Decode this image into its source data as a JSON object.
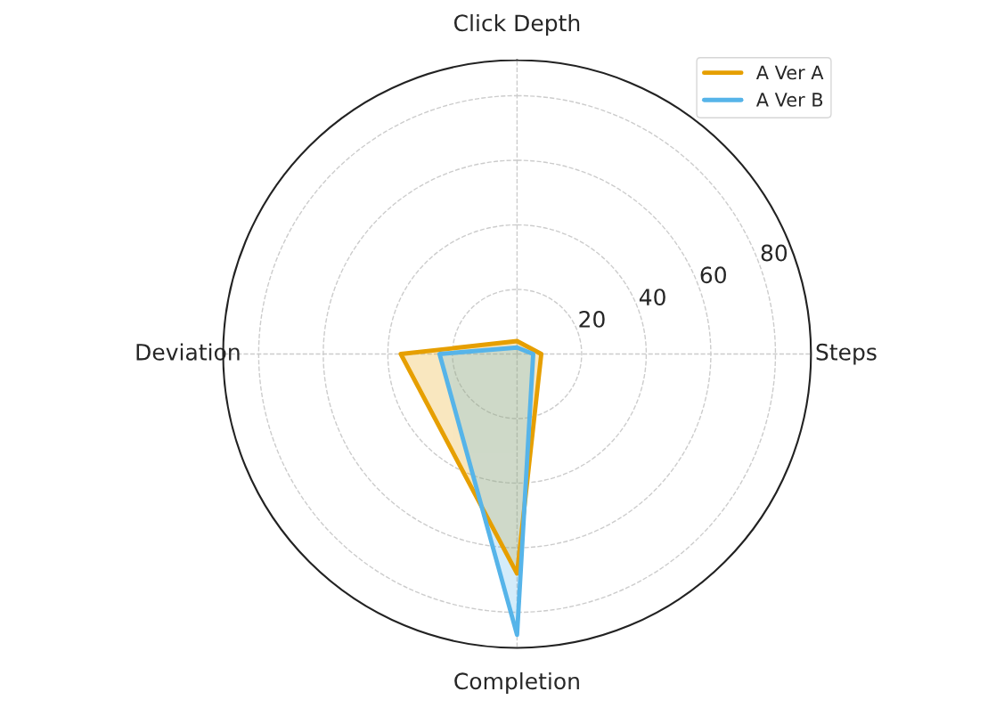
{
  "chart_data": {
    "type": "radar",
    "categories": [
      "Click Depth",
      "Steps",
      "Completion",
      "Deviation"
    ],
    "series": [
      {
        "name": "A Ver A",
        "color": "#e69f00",
        "values": [
          4,
          7.5,
          68,
          36
        ]
      },
      {
        "name": "A Ver B",
        "color": "#56b4e9",
        "values": [
          2,
          5,
          87,
          24
        ]
      }
    ],
    "ylim": [
      0,
      91
    ],
    "yticks": [
      20,
      40,
      60,
      80
    ],
    "grid": true,
    "legend": "top right"
  }
}
